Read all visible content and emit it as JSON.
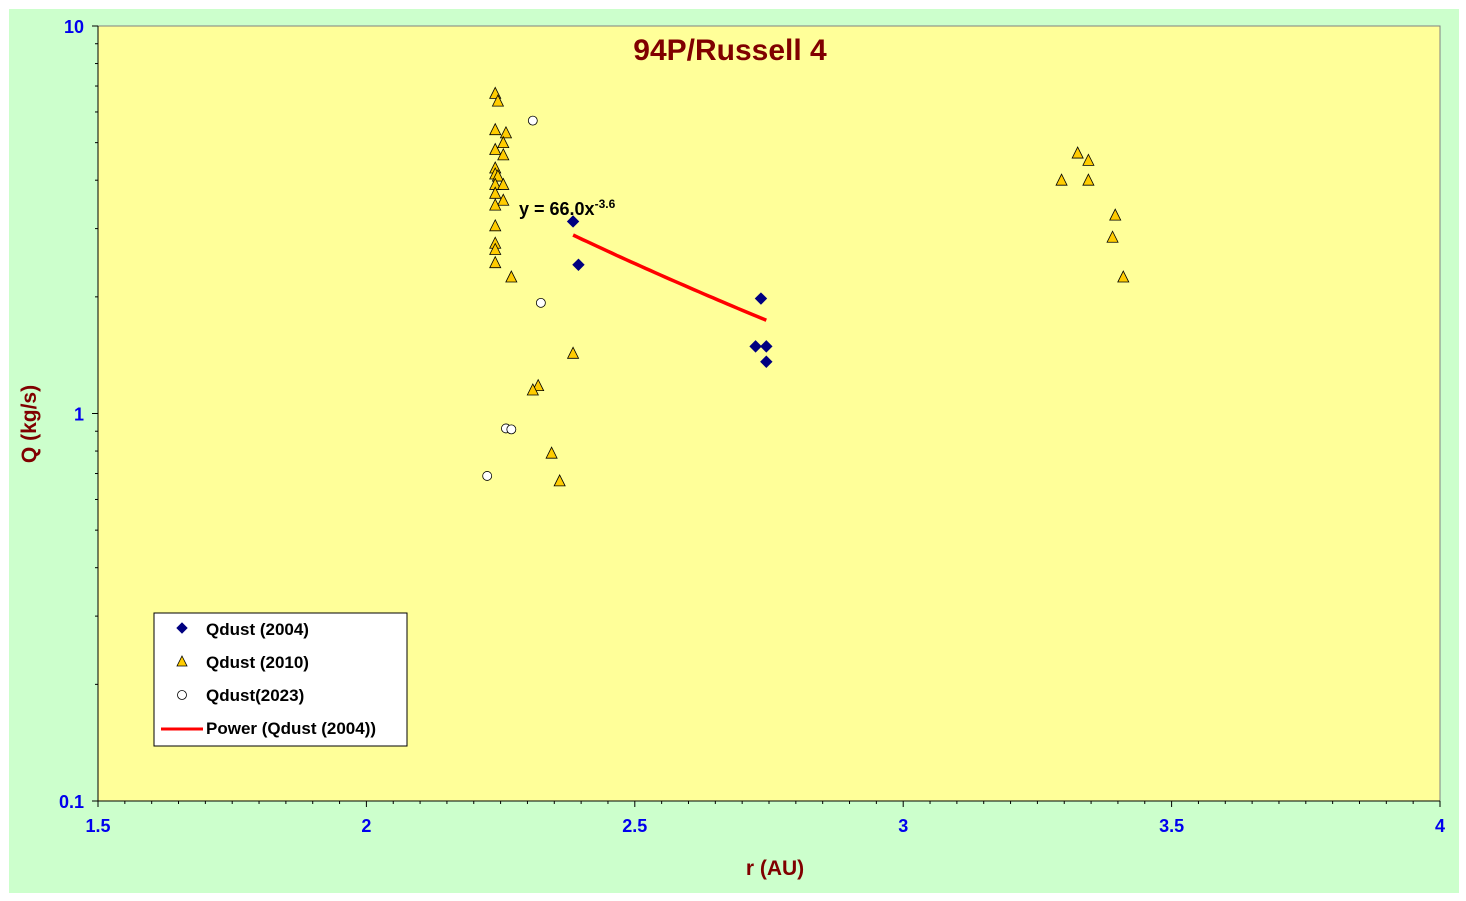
{
  "colors": {
    "chart_bg": "#ccffcc",
    "plot_bg": "#ffff99",
    "series_2004": "#000080",
    "series_2010": "#ffcc00",
    "series_2023": "#ffffff",
    "trendline": "#ff0000",
    "tick_label": "#0000ee",
    "title": "#800000"
  },
  "chart_data": {
    "type": "scatter",
    "title": "94P/Russell 4",
    "xlabel": "r (AU)",
    "ylabel": "Q (kg/s)",
    "xlim": [
      1.5,
      4
    ],
    "ylim": [
      0.1,
      10
    ],
    "y_scale": "log",
    "grid": false,
    "legend_position": "bottom-left",
    "x_ticks": [
      "1.5",
      "2",
      "2.5",
      "3",
      "3.5",
      "4"
    ],
    "y_ticks": [
      "0.1",
      "1",
      "10"
    ],
    "series": [
      {
        "name": "Qdust (2004)",
        "marker": "diamond",
        "color": "#000080",
        "points": [
          [
            2.385,
            3.13
          ],
          [
            2.395,
            2.42
          ],
          [
            2.735,
            1.98
          ],
          [
            2.725,
            1.49
          ],
          [
            2.745,
            1.49
          ],
          [
            2.745,
            1.36
          ]
        ]
      },
      {
        "name": "Qdust (2010)",
        "marker": "triangle",
        "color": "#ffcc00",
        "points": [
          [
            2.24,
            6.7
          ],
          [
            2.245,
            6.4
          ],
          [
            2.24,
            5.4
          ],
          [
            2.26,
            5.3
          ],
          [
            2.255,
            5.0
          ],
          [
            2.24,
            4.8
          ],
          [
            2.255,
            4.65
          ],
          [
            2.24,
            4.3
          ],
          [
            2.24,
            4.15
          ],
          [
            2.245,
            4.1
          ],
          [
            2.24,
            3.9
          ],
          [
            2.255,
            3.9
          ],
          [
            2.24,
            3.7
          ],
          [
            2.255,
            3.55
          ],
          [
            2.24,
            3.45
          ],
          [
            2.24,
            3.05
          ],
          [
            2.24,
            2.75
          ],
          [
            2.24,
            2.65
          ],
          [
            2.24,
            2.45
          ],
          [
            2.27,
            2.25
          ],
          [
            2.32,
            1.18
          ],
          [
            2.31,
            1.15
          ],
          [
            2.385,
            1.43
          ],
          [
            2.345,
            0.79
          ],
          [
            2.36,
            0.67
          ],
          [
            3.295,
            4.0
          ],
          [
            3.325,
            4.7
          ],
          [
            3.345,
            4.5
          ],
          [
            3.345,
            4.0
          ],
          [
            3.395,
            3.25
          ],
          [
            3.39,
            2.85
          ],
          [
            3.41,
            2.25
          ]
        ]
      },
      {
        "name": "Qdust(2023)",
        "marker": "circle",
        "color": "#ffffff",
        "points": [
          [
            2.31,
            5.7
          ],
          [
            2.325,
            1.93
          ],
          [
            2.26,
            0.915
          ],
          [
            2.27,
            0.91
          ],
          [
            2.225,
            0.69
          ]
        ]
      }
    ],
    "trendline": {
      "name": "Power (Qdust (2004))",
      "type": "power",
      "equation_label": "y = 66.0x",
      "exponent_label": "-3.6",
      "a": 66.0,
      "b": -3.6,
      "x_range": [
        2.385,
        2.745
      ]
    }
  }
}
